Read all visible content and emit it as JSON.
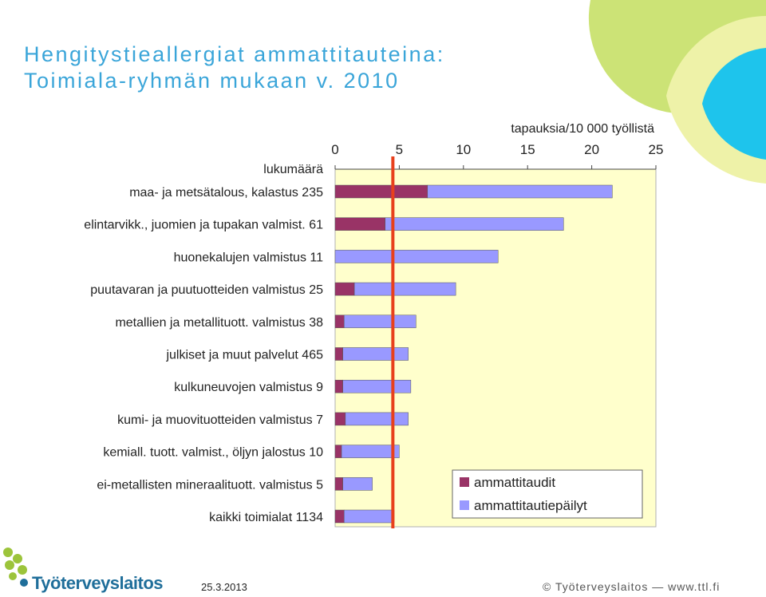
{
  "title": {
    "line1": "Hengitystieallergiat ammattitauteina:",
    "line2": "Toimiala-ryhmän mukaan v. 2010"
  },
  "footer": {
    "date": "25.3.2013",
    "copyright": "© Työterveyslaitos — www.ttl.fi",
    "logo_text": "Työterveyslaitos"
  },
  "colors": {
    "title": "#3aa5d9",
    "ammattitaudit": "#993366",
    "ammattitautiepailyt": "#9999ff",
    "plot_background": "#ffffcc",
    "reference_line": "#e8401c"
  },
  "chart_data": {
    "type": "bar",
    "orientation": "horizontal",
    "stacked": true,
    "title": "",
    "xlabel": "tapauksia/10 000 työllistä",
    "ylabel": "",
    "category_header": "lukumäärä",
    "xlim": [
      0,
      25
    ],
    "xticks": [
      "0",
      "5",
      "10",
      "15",
      "20",
      "25"
    ],
    "x_axis_position": "top",
    "legend_position": "bottom-right",
    "reference_line_x": 4.5,
    "categories": [
      "maa- ja metsätalous, kalastus 235",
      "elintarvikk., juomien ja tupakan valmist. 61",
      "huonekalujen valmistus 11",
      "puutavaran ja puutuotteiden valmistus 25",
      "metallien ja metallituott. valmistus 38",
      "julkiset ja muut palvelut 465",
      "kulkuneuvojen valmistus 9",
      "kumi- ja muovituotteiden valmistus 7",
      "kemiall. tuott. valmist., öljyn jalostus 10",
      "ei-metallisten mineraalituott. valmistus 5",
      "kaikki toimialat 1134"
    ],
    "series": [
      {
        "name": "ammattitaudit",
        "values": [
          7.2,
          3.9,
          0,
          1.5,
          0.7,
          0.6,
          0.6,
          0.8,
          0.5,
          0.6,
          0.7
        ]
      },
      {
        "name": "ammattitautiepäilyt",
        "values": [
          14.4,
          13.9,
          12.7,
          7.9,
          5.6,
          5.1,
          5.3,
          4.9,
          4.5,
          2.3,
          3.9
        ]
      }
    ]
  }
}
